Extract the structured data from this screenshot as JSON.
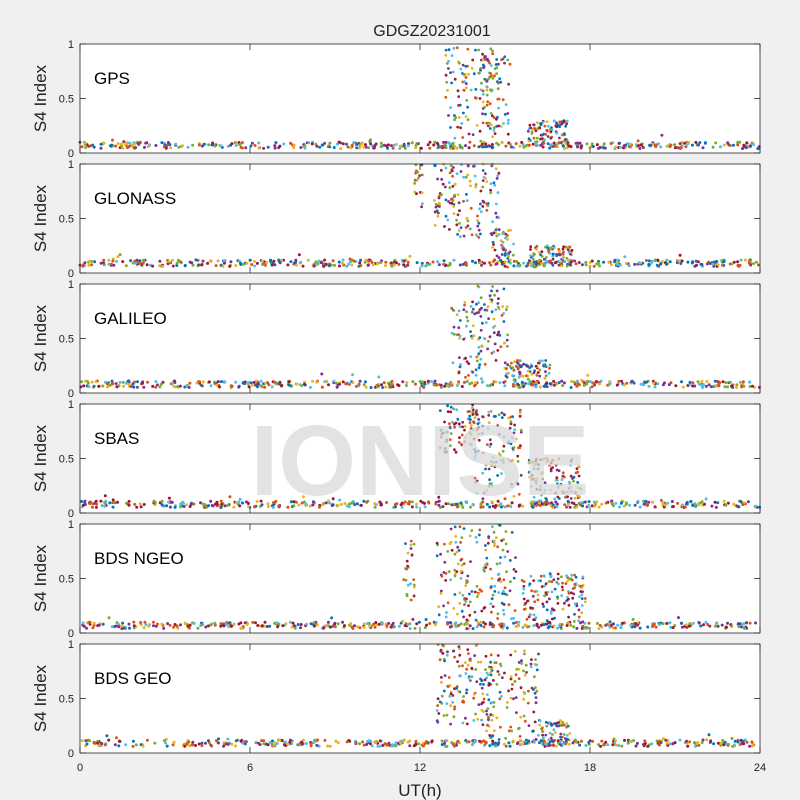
{
  "chart_data": {
    "type": "scatter",
    "title": "GDGZ20231001",
    "xlabel": "UT(h)",
    "ylabel": "S4 Index",
    "xlim": [
      0,
      24
    ],
    "ylim": [
      0,
      1
    ],
    "xticks": [
      "0",
      "6",
      "12",
      "18",
      "24"
    ],
    "yticks": [
      "0",
      "0.5",
      "1"
    ],
    "grid": false,
    "watermark": "IONISE",
    "colors": [
      "#0072BD",
      "#D95319",
      "#EDB120",
      "#7E2F8E",
      "#77AC30",
      "#4DBEEE",
      "#A2142F"
    ],
    "panels": [
      {
        "label": "GPS",
        "baseline": 0.07,
        "bursts": [
          {
            "start": 12.9,
            "end": 14.8,
            "min": 0.1,
            "max": 1.0
          },
          {
            "start": 14.2,
            "end": 15.2,
            "min": 0.15,
            "max": 0.9
          },
          {
            "start": 15.8,
            "end": 17.2,
            "min": 0.06,
            "max": 0.3
          }
        ]
      },
      {
        "label": "GLONASS",
        "baseline": 0.09,
        "bursts": [
          {
            "start": 11.8,
            "end": 12.1,
            "min": 0.6,
            "max": 1.0
          },
          {
            "start": 12.5,
            "end": 14.8,
            "min": 0.3,
            "max": 1.0
          },
          {
            "start": 14.5,
            "end": 15.3,
            "min": 0.05,
            "max": 0.4
          },
          {
            "start": 15.9,
            "end": 17.5,
            "min": 0.05,
            "max": 0.25
          }
        ]
      },
      {
        "label": "GALILEO",
        "baseline": 0.08,
        "bursts": [
          {
            "start": 13.1,
            "end": 14.2,
            "min": 0.1,
            "max": 0.85
          },
          {
            "start": 14.0,
            "end": 15.1,
            "min": 0.2,
            "max": 1.0
          },
          {
            "start": 15.0,
            "end": 16.6,
            "min": 0.05,
            "max": 0.3
          }
        ]
      },
      {
        "label": "SBAS",
        "baseline": 0.08,
        "bursts": [
          {
            "start": 12.7,
            "end": 14.1,
            "min": 0.55,
            "max": 1.0
          },
          {
            "start": 13.9,
            "end": 15.6,
            "min": 0.1,
            "max": 0.95
          },
          {
            "start": 15.8,
            "end": 17.7,
            "min": 0.05,
            "max": 0.5
          }
        ]
      },
      {
        "label": "BDS NGEO",
        "baseline": 0.07,
        "bursts": [
          {
            "start": 11.4,
            "end": 11.8,
            "min": 0.3,
            "max": 0.85
          },
          {
            "start": 12.6,
            "end": 15.4,
            "min": 0.1,
            "max": 1.0
          },
          {
            "start": 15.6,
            "end": 17.9,
            "min": 0.05,
            "max": 0.55
          }
        ]
      },
      {
        "label": "BDS GEO",
        "baseline": 0.09,
        "bursts": [
          {
            "start": 12.6,
            "end": 14.6,
            "min": 0.25,
            "max": 1.0
          },
          {
            "start": 14.2,
            "end": 16.2,
            "min": 0.05,
            "max": 0.95
          },
          {
            "start": 16.2,
            "end": 17.3,
            "min": 0.05,
            "max": 0.3
          }
        ]
      }
    ]
  }
}
